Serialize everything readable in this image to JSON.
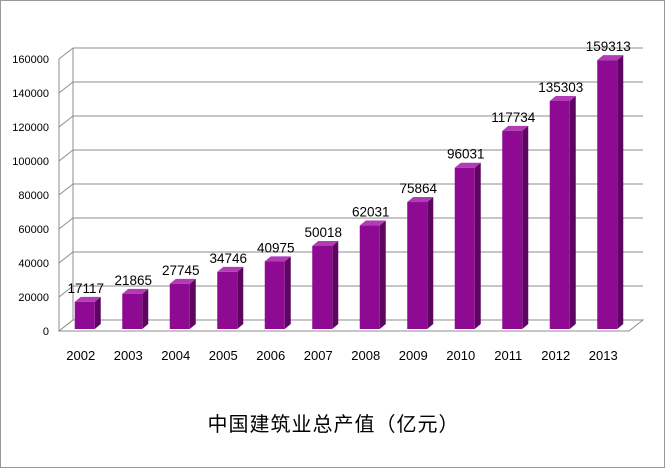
{
  "chart_data": {
    "type": "bar",
    "title": "中国建筑业总产值（亿元）",
    "categories": [
      "2002",
      "2003",
      "2004",
      "2005",
      "2006",
      "2007",
      "2008",
      "2009",
      "2010",
      "2011",
      "2012",
      "2013"
    ],
    "values": [
      17117,
      21865,
      27745,
      34746,
      40975,
      50018,
      62031,
      75864,
      96031,
      117734,
      135303,
      159313
    ],
    "data_labels": [
      "17117",
      "21865",
      "27745",
      "34746",
      "40975",
      "50018",
      "62031",
      "75864",
      "96031",
      "117734",
      "135303",
      "159313"
    ],
    "ylim": [
      0,
      160000
    ],
    "yticks": [
      0,
      20000,
      40000,
      60000,
      80000,
      100000,
      120000,
      140000,
      160000
    ],
    "ytick_labels": [
      "0",
      "20000",
      "40000",
      "60000",
      "80000",
      "100000",
      "120000",
      "140000",
      "160000"
    ],
    "grid": true,
    "style": "3d-column",
    "colors": {
      "bar_front": "#8e0a93",
      "bar_side": "#5d0561",
      "bar_top": "#b23cb6",
      "grid": "#8c8c8c"
    }
  }
}
